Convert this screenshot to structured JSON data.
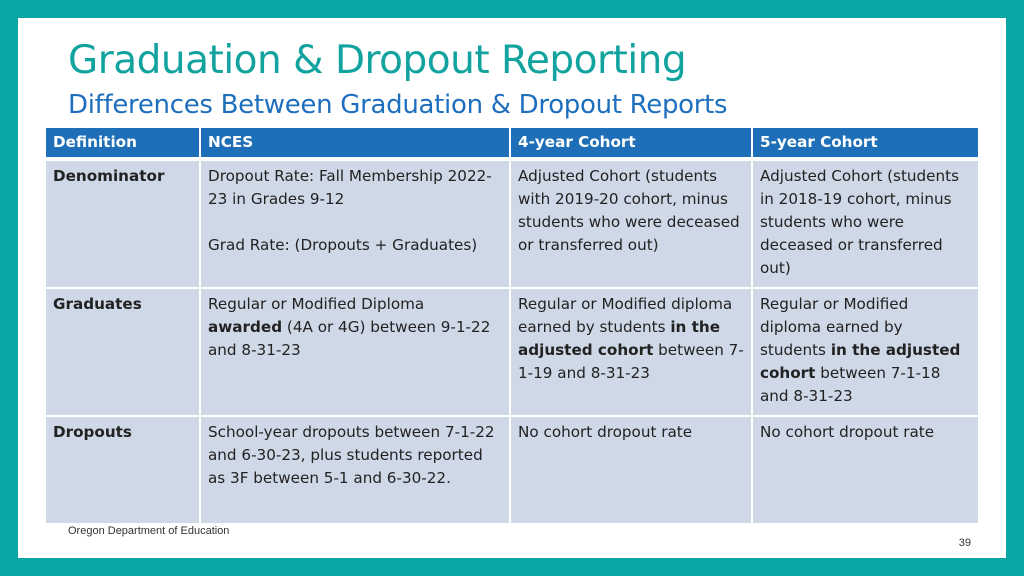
{
  "header": {
    "title": "Graduation & Dropout Reporting",
    "subtitle": "Differences Between Graduation & Dropout Reports"
  },
  "table": {
    "columns": [
      "Definition",
      "NCES",
      "4-year Cohort",
      "5-year Cohort"
    ],
    "rows": [
      {
        "label": "Denominator",
        "nces": {
          "line1": "Dropout Rate: Fall Membership 2022-23 in Grades 9-12",
          "line2": "Grad Rate: (Dropouts + Graduates)"
        },
        "cohort4": "Adjusted Cohort (students with 2019-20 cohort, minus students who were deceased or transferred out)",
        "cohort5": "Adjusted Cohort (students in 2018-19 cohort, minus students who were deceased or transferred out)"
      },
      {
        "label": "Graduates",
        "nces": {
          "pre": "Regular or Modified Diploma ",
          "bold": "awarded",
          "post": " (4A or 4G) between 9-1-22 and 8-31-23"
        },
        "cohort4": {
          "pre": "Regular or Modified diploma earned by students ",
          "bold": "in the adjusted cohort",
          "post": " between 7-1-19 and 8-31-23"
        },
        "cohort5": {
          "pre": "Regular or Modified diploma earned by students ",
          "bold": "in the adjusted cohort",
          "post": " between 7-1-18 and 8-31-23"
        }
      },
      {
        "label": "Dropouts",
        "nces": "School-year dropouts between 7-1-22 and 6-30-23, plus students reported as 3F between 5-1 and 6-30-22.",
        "cohort4": "No cohort dropout rate",
        "cohort5": "No cohort dropout rate"
      }
    ]
  },
  "footer": {
    "organization": "Oregon Department of Education",
    "page_number": "39"
  },
  "colors": {
    "frame": "#0aa7a4",
    "title": "#12a39f",
    "subtitle": "#1f6fbf",
    "header_fill": "#1f6fb8",
    "cell_fill": "#cfd8e7"
  }
}
